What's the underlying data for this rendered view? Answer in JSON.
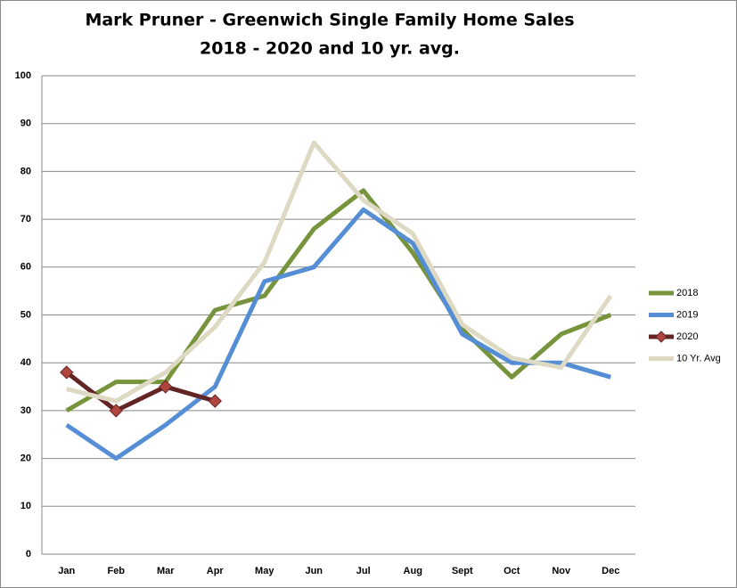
{
  "chart_data": {
    "type": "line",
    "title": "Mark Pruner - Greenwich Single Family Home Sales",
    "subtitle": "2018 - 2020 and 10 yr. avg.",
    "categories": [
      "Jan",
      "Feb",
      "Mar",
      "Apr",
      "May",
      "Jun",
      "Jul",
      "Aug",
      "Sept",
      "Oct",
      "Nov",
      "Dec"
    ],
    "series": [
      {
        "name": "2018",
        "color": "#77933c",
        "values": [
          30,
          36,
          36,
          51,
          54,
          68,
          76,
          63,
          47,
          37,
          46,
          50
        ]
      },
      {
        "name": "2019",
        "color": "#558ed5",
        "values": [
          27,
          20,
          27,
          35,
          57,
          60,
          72,
          65,
          46,
          40,
          40,
          37
        ]
      },
      {
        "name": "2020",
        "color": "#632523",
        "marker": "diamond",
        "marker_color": "#b0443e",
        "values": [
          38,
          30,
          35,
          32,
          null,
          null,
          null,
          null,
          null,
          null,
          null,
          null
        ]
      },
      {
        "name": "10 Yr. Avg",
        "color": "#ddd9c3",
        "values": [
          34.5,
          32,
          38,
          47.5,
          61,
          86,
          74,
          67,
          48,
          41,
          39,
          54
        ]
      }
    ],
    "ylim": [
      0,
      100
    ],
    "yticks": [
      0,
      10,
      20,
      30,
      40,
      50,
      60,
      70,
      80,
      90,
      100
    ],
    "grid": true,
    "legend": "right"
  }
}
